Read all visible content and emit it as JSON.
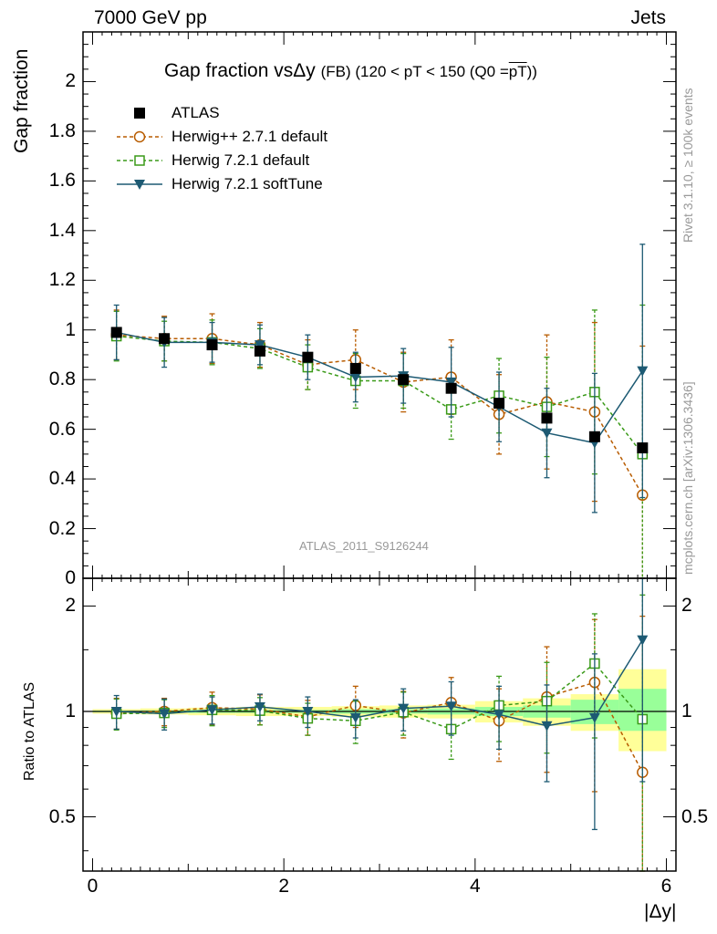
{
  "header": {
    "left": "7000 GeV pp",
    "right": "Jets"
  },
  "side_labels": {
    "rivet": "Rivet 3.1.10, ≥ 100k events",
    "mcplots": "mcplots.cern.ch [arXiv:1306.3436]"
  },
  "analysis_tag": "ATLAS_2011_S9126244",
  "title": {
    "main": "Gap fraction vsΔy",
    "detail": "(FB) (120 < pT < 150 (Q0 =",
    "pt_bar": "pT",
    "close": "))"
  },
  "colors": {
    "atlas": "#000000",
    "herwigpp": "#b85c00",
    "herwig_default": "#3a9a18",
    "herwig_soft": "#1d5a73",
    "band_outer": "#ffff99",
    "band_inner": "#99ff99"
  },
  "chart_data": [
    {
      "type": "scatter",
      "title": "Gap fraction vsΔy (FB) (120 < pT < 150 (Q0 = pT))",
      "xlabel": "|Δy|",
      "ylabel": "Gap fraction",
      "xlim": [
        -0.1,
        6.1
      ],
      "ylim": [
        0,
        2.2
      ],
      "yticks": [
        "0",
        "0.2",
        "0.4",
        "0.6",
        "0.8",
        "1",
        "1.2",
        "1.4",
        "1.6",
        "1.8",
        "2"
      ],
      "x": [
        0.25,
        0.75,
        1.25,
        1.75,
        2.25,
        2.75,
        3.25,
        3.75,
        4.25,
        4.75,
        5.25,
        5.75
      ],
      "series": [
        {
          "name": "ATLAS",
          "marker": "square-filled",
          "values": [
            0.99,
            0.965,
            0.94,
            0.915,
            0.89,
            0.845,
            0.8,
            0.765,
            0.705,
            0.645,
            0.57,
            0.525
          ]
        },
        {
          "name": "Herwig++ 2.7.1 default",
          "marker": "circle-open",
          "dashed": true,
          "values": [
            0.98,
            0.965,
            0.965,
            0.94,
            0.86,
            0.88,
            0.79,
            0.81,
            0.66,
            0.71,
            0.67,
            0.335
          ],
          "err": [
            0.1,
            0.09,
            0.1,
            0.09,
            0.1,
            0.12,
            0.12,
            0.15,
            0.16,
            0.27,
            0.36,
            0.6
          ]
        },
        {
          "name": "Herwig 7.2.1 default",
          "marker": "square-open",
          "dashed": true,
          "values": [
            0.975,
            0.955,
            0.95,
            0.925,
            0.85,
            0.795,
            0.795,
            0.68,
            0.735,
            0.69,
            0.75,
            0.5
          ],
          "err": [
            0.1,
            0.08,
            0.09,
            0.08,
            0.09,
            0.11,
            0.11,
            0.12,
            0.15,
            0.2,
            0.33,
            0.6
          ]
        },
        {
          "name": "Herwig 7.2.1 softTune",
          "marker": "triangle-down-filled",
          "dashed": false,
          "values": [
            0.99,
            0.95,
            0.95,
            0.94,
            0.89,
            0.81,
            0.815,
            0.79,
            0.69,
            0.585,
            0.545,
            0.835
          ],
          "err": [
            0.11,
            0.1,
            0.08,
            0.08,
            0.09,
            0.1,
            0.11,
            0.14,
            0.14,
            0.18,
            0.28,
            0.51
          ]
        }
      ],
      "legend_placement": "top-left"
    },
    {
      "type": "scatter",
      "ylabel": "Ratio to ATLAS",
      "xlabel": "|Δy|",
      "xlim": [
        -0.1,
        6.1
      ],
      "ylim": [
        0.35,
        2.4
      ],
      "log_y": true,
      "xticks": [
        "0",
        "2",
        "4",
        "6"
      ],
      "yticks": [
        "0.5",
        "1",
        "2"
      ],
      "x": [
        0.25,
        0.75,
        1.25,
        1.75,
        2.25,
        2.75,
        3.25,
        3.75,
        4.25,
        4.75,
        5.25,
        5.75
      ],
      "bands": {
        "edges": [
          0.0,
          0.5,
          1.0,
          1.5,
          2.0,
          2.5,
          3.0,
          3.5,
          4.0,
          4.5,
          5.0,
          5.5,
          6.0
        ],
        "outer_lo": [
          0.985,
          0.98,
          0.975,
          0.97,
          0.97,
          0.965,
          0.96,
          0.955,
          0.93,
          0.91,
          0.88,
          0.77
        ],
        "outer_hi": [
          1.015,
          1.02,
          1.025,
          1.03,
          1.03,
          1.035,
          1.04,
          1.045,
          1.07,
          1.09,
          1.12,
          1.32
        ],
        "inner_lo": [
          0.995,
          0.993,
          0.99,
          0.99,
          0.99,
          0.985,
          0.985,
          0.98,
          0.97,
          0.96,
          0.92,
          0.88
        ],
        "inner_hi": [
          1.005,
          1.007,
          1.01,
          1.01,
          1.01,
          1.015,
          1.015,
          1.02,
          1.03,
          1.04,
          1.08,
          1.16
        ]
      },
      "series": [
        {
          "name": "Herwig++ 2.7.1 default",
          "marker": "circle-open",
          "dashed": true,
          "values": [
            0.99,
            1.0,
            1.025,
            1.015,
            0.965,
            1.04,
            0.99,
            1.06,
            0.94,
            1.1,
            1.21,
            0.67
          ],
          "err": [
            0.1,
            0.09,
            0.11,
            0.1,
            0.11,
            0.14,
            0.15,
            0.19,
            0.22,
            0.43,
            0.62,
            1.2
          ]
        },
        {
          "name": "Herwig 7.2.1 default",
          "marker": "square-open",
          "dashed": true,
          "values": [
            0.985,
            0.99,
            1.01,
            1.005,
            0.955,
            0.94,
            0.995,
            0.89,
            1.04,
            1.07,
            1.37,
            0.95
          ],
          "err": [
            0.1,
            0.09,
            0.1,
            0.09,
            0.1,
            0.13,
            0.14,
            0.16,
            0.22,
            0.31,
            0.53,
            1.2
          ]
        },
        {
          "name": "Herwig 7.2.1 softTune",
          "marker": "triangle-down-filled",
          "dashed": false,
          "values": [
            1.0,
            0.985,
            1.01,
            1.03,
            1.0,
            0.96,
            1.02,
            1.035,
            0.98,
            0.91,
            0.96,
            1.6
          ],
          "err": [
            0.11,
            0.1,
            0.09,
            0.09,
            0.1,
            0.12,
            0.14,
            0.18,
            0.2,
            0.28,
            0.5,
            0.97
          ]
        }
      ]
    }
  ]
}
